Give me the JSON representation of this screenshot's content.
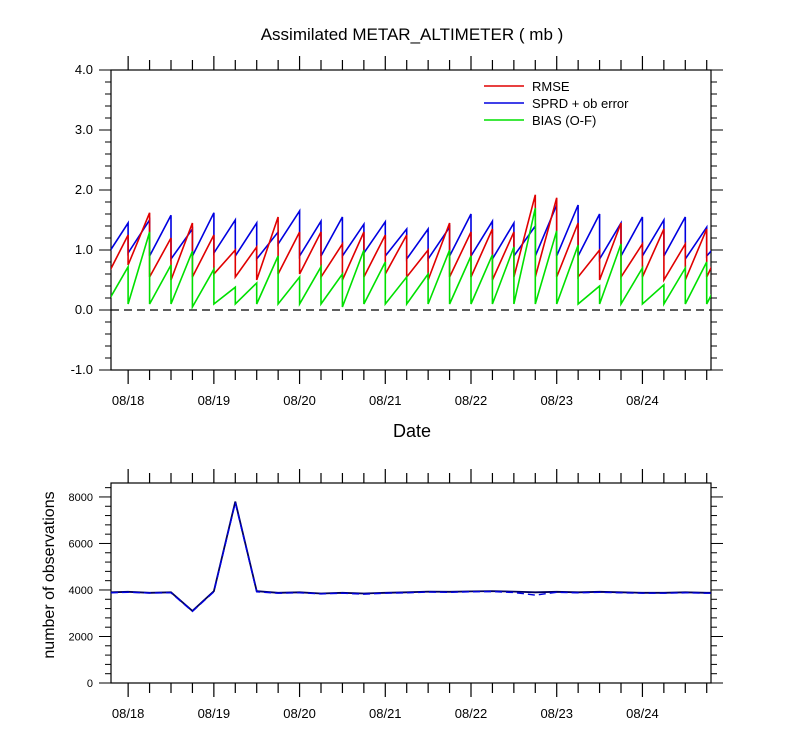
{
  "chart_data": [
    {
      "type": "line",
      "title": "Assimilated METAR_ALTIMETER ( mb )",
      "xlabel": "Date",
      "ylabel": "",
      "ylim": [
        -1.0,
        4.0
      ],
      "yticks": [
        "-1.0",
        "0.0",
        "1.0",
        "2.0",
        "3.0",
        "4.0"
      ],
      "ytick_values": [
        -1,
        0,
        1,
        2,
        3,
        4
      ],
      "xlim": [
        17.8,
        24.8
      ],
      "xticks": [
        "08/18",
        "08/19",
        "08/20",
        "08/21",
        "08/22",
        "08/23",
        "08/24"
      ],
      "xtick_values": [
        18,
        19,
        20,
        21,
        22,
        23,
        24
      ],
      "reference_line": 0,
      "legend": [
        "RMSE",
        "SPRD + ob error",
        "BIAS (O-F)"
      ],
      "legend_position": "top-right",
      "colors": {
        "RMSE": "#e00000",
        "SPRD + ob error": "#0000e0",
        "BIAS (O-F)": "#00e000"
      },
      "cycle_times": [
        17.75,
        18.0,
        18.25,
        18.5,
        18.75,
        19.0,
        19.25,
        19.5,
        19.75,
        20.0,
        20.25,
        20.5,
        20.75,
        21.0,
        21.25,
        21.5,
        21.75,
        22.0,
        22.25,
        22.5,
        22.75,
        23.0,
        23.25,
        23.5,
        23.75,
        24.0,
        24.25,
        24.5,
        24.75
      ],
      "series": [
        {
          "name": "RMSE",
          "start": [
            0.55,
            0.75,
            0.55,
            0.5,
            0.55,
            0.6,
            0.55,
            0.5,
            0.6,
            0.6,
            0.55,
            0.5,
            0.55,
            0.6,
            0.55,
            0.5,
            0.55,
            0.55,
            0.5,
            0.55,
            0.55,
            0.55,
            0.55,
            0.5,
            0.55,
            0.55,
            0.5,
            0.5,
            0.55
          ],
          "end": [
            1.25,
            1.62,
            1.2,
            1.45,
            1.25,
            1.0,
            1.05,
            1.55,
            1.3,
            1.3,
            1.1,
            1.3,
            1.25,
            1.25,
            1.0,
            1.45,
            1.3,
            1.35,
            1.3,
            1.92,
            1.87,
            1.45,
            1.0,
            1.45,
            1.1,
            1.35,
            1.1,
            1.35,
            1.3
          ]
        },
        {
          "name": "SPRD + ob error",
          "start": [
            0.9,
            0.95,
            0.9,
            0.85,
            0.9,
            0.95,
            0.9,
            0.85,
            1.1,
            0.9,
            0.9,
            0.9,
            0.95,
            0.9,
            0.85,
            0.85,
            0.9,
            0.9,
            0.85,
            0.9,
            0.9,
            0.9,
            0.9,
            0.85,
            0.9,
            0.9,
            0.9,
            0.85,
            0.9
          ],
          "end": [
            1.45,
            1.5,
            1.58,
            1.35,
            1.62,
            1.5,
            1.45,
            1.3,
            1.65,
            1.48,
            1.55,
            1.43,
            1.47,
            1.35,
            1.35,
            1.38,
            1.6,
            1.48,
            1.45,
            1.4,
            1.75,
            1.75,
            1.6,
            1.45,
            1.55,
            1.5,
            1.55,
            1.38,
            1.3
          ]
        },
        {
          "name": "BIAS (O-F)",
          "start": [
            0.1,
            0.1,
            0.1,
            0.1,
            0.05,
            0.1,
            0.1,
            0.1,
            0.1,
            0.1,
            0.1,
            0.05,
            0.1,
            0.1,
            0.1,
            0.1,
            0.1,
            0.1,
            0.1,
            0.1,
            0.1,
            0.1,
            0.1,
            0.1,
            0.1,
            0.1,
            0.1,
            0.1,
            0.1
          ],
          "end": [
            0.72,
            1.3,
            0.75,
            0.98,
            0.68,
            0.38,
            0.45,
            0.9,
            0.55,
            0.72,
            0.6,
            1.0,
            0.8,
            0.55,
            0.6,
            1.0,
            0.9,
            0.92,
            1.05,
            1.7,
            1.32,
            1.08,
            0.4,
            1.1,
            0.7,
            0.42,
            0.7,
            0.8,
            0.8
          ]
        }
      ]
    },
    {
      "type": "line",
      "title": "",
      "xlabel": "",
      "ylabel": "number of observations",
      "ylim": [
        0,
        8600
      ],
      "yticks": [
        "0",
        "2000",
        "4000",
        "6000",
        "8000"
      ],
      "ytick_values": [
        0,
        2000,
        4000,
        6000,
        8000
      ],
      "xlim": [
        17.8,
        24.8
      ],
      "xticks": [
        "08/18",
        "08/19",
        "08/20",
        "08/21",
        "08/22",
        "08/23",
        "08/24"
      ],
      "xtick_values": [
        18,
        19,
        20,
        21,
        22,
        23,
        24
      ],
      "colors": {
        "obs": "#000060",
        "used": "#0000e0"
      },
      "series": [
        {
          "name": "observations",
          "x": [
            17.8,
            18.0,
            18.25,
            18.5,
            18.75,
            19.0,
            19.25,
            19.5,
            19.75,
            20.0,
            20.25,
            20.5,
            20.75,
            21.0,
            21.25,
            21.5,
            21.75,
            22.0,
            22.25,
            22.5,
            22.75,
            23.0,
            23.25,
            23.5,
            23.75,
            24.0,
            24.25,
            24.5,
            24.75,
            24.8
          ],
          "y": [
            3900,
            3920,
            3880,
            3900,
            3100,
            3950,
            7800,
            3950,
            3880,
            3900,
            3850,
            3880,
            3850,
            3880,
            3900,
            3930,
            3920,
            3940,
            3950,
            3930,
            3900,
            3920,
            3900,
            3920,
            3900,
            3880,
            3880,
            3900,
            3880,
            3880
          ]
        },
        {
          "name": "used",
          "x": [
            17.8,
            18.0,
            18.25,
            18.5,
            18.75,
            19.0,
            19.25,
            19.5,
            19.75,
            20.0,
            20.25,
            20.5,
            20.75,
            21.0,
            21.25,
            21.5,
            21.75,
            22.0,
            22.25,
            22.5,
            22.75,
            23.0,
            23.25,
            23.5,
            23.75,
            24.0,
            24.25,
            24.5,
            24.75,
            24.8
          ],
          "y": [
            3880,
            3900,
            3870,
            3880,
            3080,
            3920,
            7750,
            3920,
            3860,
            3880,
            3830,
            3860,
            3820,
            3860,
            3880,
            3910,
            3900,
            3920,
            3930,
            3890,
            3780,
            3900,
            3880,
            3900,
            3880,
            3860,
            3860,
            3880,
            3860,
            3860
          ]
        }
      ]
    }
  ]
}
